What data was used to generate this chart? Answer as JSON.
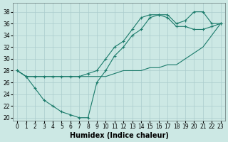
{
  "xlabel": "Humidex (Indice chaleur)",
  "background_color": "#cce8e4",
  "grid_color": "#aacccc",
  "line_color": "#1a7a6a",
  "xlim": [
    -0.5,
    23.5
  ],
  "ylim": [
    19.5,
    39.5
  ],
  "xticks": [
    0,
    1,
    2,
    3,
    4,
    5,
    6,
    7,
    8,
    9,
    10,
    11,
    12,
    13,
    14,
    15,
    16,
    17,
    18,
    19,
    20,
    21,
    22,
    23
  ],
  "yticks": [
    20,
    22,
    24,
    26,
    28,
    30,
    32,
    34,
    36,
    38
  ],
  "lines": [
    {
      "x": [
        0,
        1,
        2,
        3,
        4,
        5,
        6,
        7,
        8,
        9,
        10,
        11,
        12,
        13,
        14,
        15,
        16,
        17,
        18,
        19,
        20,
        21,
        22,
        23
      ],
      "y": [
        28,
        27,
        25,
        23,
        22,
        21,
        20.5,
        20,
        20,
        26,
        28,
        30.5,
        32,
        34,
        35,
        37,
        37.5,
        37.5,
        36,
        36.5,
        38,
        38,
        36,
        36
      ],
      "marker": "+"
    },
    {
      "x": [
        0,
        1,
        2,
        3,
        4,
        5,
        6,
        7,
        8,
        9,
        10,
        11,
        12,
        13,
        14,
        15,
        16,
        17,
        18,
        19,
        20,
        21,
        22,
        23
      ],
      "y": [
        28,
        27,
        27,
        27,
        27,
        27,
        27,
        27,
        27.5,
        28,
        30,
        32,
        33,
        35,
        37,
        37.5,
        37.5,
        37,
        35.5,
        35.5,
        35,
        35,
        35.5,
        36
      ],
      "marker": "+"
    },
    {
      "x": [
        0,
        1,
        2,
        3,
        4,
        5,
        6,
        7,
        8,
        9,
        10,
        11,
        12,
        13,
        14,
        15,
        16,
        17,
        18,
        19,
        20,
        21,
        22,
        23
      ],
      "y": [
        28,
        27,
        27,
        27,
        27,
        27,
        27,
        27,
        27,
        27,
        27,
        27.5,
        28,
        28,
        28,
        28.5,
        28.5,
        29,
        29,
        30,
        31,
        32,
        34,
        36
      ],
      "marker": null
    }
  ],
  "tick_fontsize": 5.5,
  "axis_fontsize": 7
}
